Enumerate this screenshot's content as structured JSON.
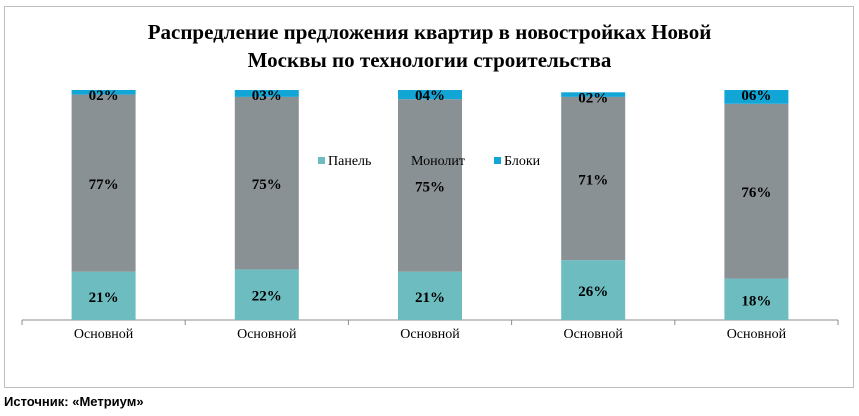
{
  "title_line1": "Распредление предложения квартир в новостройках Новой",
  "title_line2": "Москвы по технологии строительства",
  "source": "Источник: «Метриум»",
  "chart_data": {
    "type": "bar",
    "stacked": true,
    "percent": true,
    "categories": [
      "Основной",
      "Основной",
      "Основной",
      "Основной",
      "Основной"
    ],
    "series": [
      {
        "name": "Панель",
        "color": "#6cbcc0",
        "values": [
          21,
          22,
          21,
          26,
          18
        ],
        "labels": [
          "21%",
          "22%",
          "21%",
          "26%",
          "18%"
        ]
      },
      {
        "name": "Монолит",
        "color": "#8a9194",
        "values": [
          77,
          75,
          75,
          71,
          76
        ],
        "labels": [
          "77%",
          "75%",
          "75%",
          "71%",
          "76%"
        ]
      },
      {
        "name": "Блоки",
        "color": "#12a6d6",
        "values": [
          2,
          3,
          4,
          2,
          6
        ],
        "labels": [
          "02%",
          "03%",
          "04%",
          "02%",
          "06%"
        ]
      }
    ],
    "ylim": [
      0,
      100
    ],
    "legend_position": "center"
  }
}
